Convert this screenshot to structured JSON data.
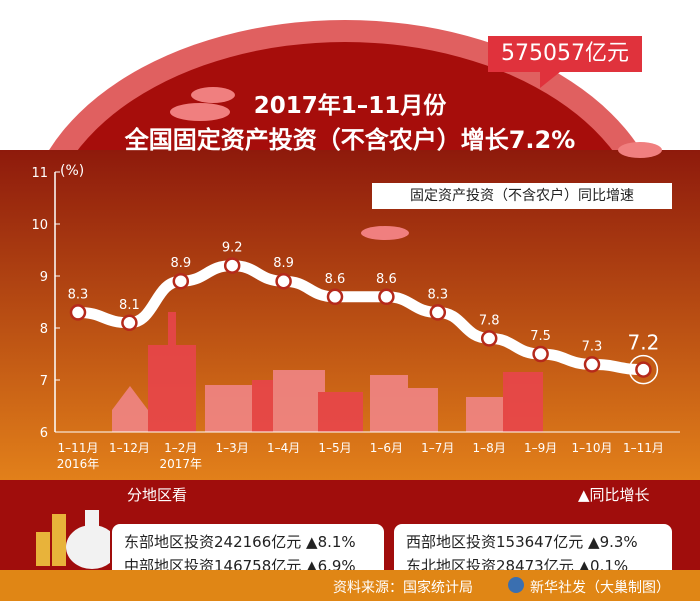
{
  "header": {
    "total": "575057亿元",
    "title_line1": "2017年1–11月份",
    "title_line2": "全国固定资产投资（不含农户）增长7.2%"
  },
  "legend": "固定资产投资（不含农户）同比增速",
  "chart_data": {
    "type": "line",
    "ylabel": "(%)",
    "ylim": [
      6,
      11
    ],
    "yticks": [
      "6",
      "7",
      "8",
      "9",
      "10",
      "11"
    ],
    "categories": [
      "1–11月",
      "1–12月",
      "1–2月",
      "1–3月",
      "1–4月",
      "1–5月",
      "1–6月",
      "1–7月",
      "1–8月",
      "1–9月",
      "1–10月",
      "1–11月"
    ],
    "category_sublabels": [
      "2016年",
      "",
      "2017年",
      "",
      "",
      "",
      "",
      "",
      "",
      "",
      "",
      ""
    ],
    "values": [
      8.3,
      8.1,
      8.9,
      9.2,
      8.9,
      8.6,
      8.6,
      8.3,
      7.8,
      7.5,
      7.3,
      7.2
    ],
    "data_labels": [
      "8.3",
      "8.1",
      "8.9",
      "9.2",
      "8.9",
      "8.6",
      "8.6",
      "8.3",
      "7.8",
      "7.5",
      "7.3",
      "7.2"
    ],
    "grid": false,
    "colors": {
      "line": "#ffffff",
      "marker_fill": "#ffffff",
      "marker_stroke": "#b5291b"
    }
  },
  "regions": {
    "title": "分地区看",
    "growth_label": "▲同比增长",
    "left": [
      "东部地区投资242166亿元  ▲8.1%",
      "中部地区投资146758亿元  ▲6.9%"
    ],
    "right": [
      "西部地区投资153647亿元  ▲9.3%",
      "东北地区投资28473亿元  ▲0.1%"
    ]
  },
  "footer": {
    "source": "资料来源：国家统计局",
    "credit": "新华社发（大巢制图）"
  }
}
